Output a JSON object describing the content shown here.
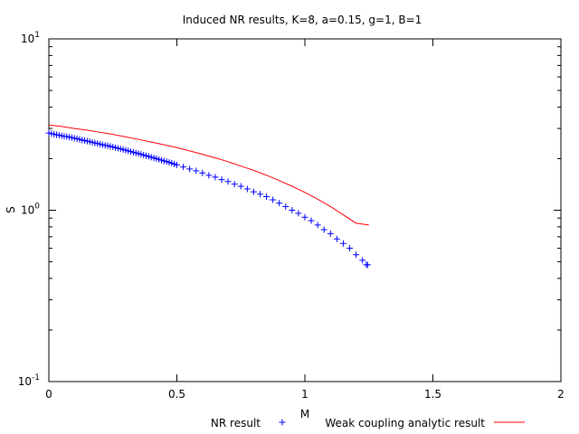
{
  "chart_data": {
    "type": "scatter",
    "title": "Induced NR results, K=8, a=0.15, g=1, B=1",
    "xlabel": "M",
    "ylabel": "S",
    "xlim": [
      0,
      2
    ],
    "ylim": [
      0.1,
      10
    ],
    "yscale": "log",
    "grid": false,
    "legend_position": "bottom",
    "x_ticks": [
      {
        "value": 0,
        "label": "0"
      },
      {
        "value": 0.5,
        "label": "0.5"
      },
      {
        "value": 1,
        "label": "1"
      },
      {
        "value": 1.5,
        "label": "1.5"
      },
      {
        "value": 2,
        "label": "2"
      }
    ],
    "y_ticks": [
      {
        "value": 0.1,
        "base": "10",
        "exp": "-1"
      },
      {
        "value": 1,
        "base": "10",
        "exp": "0"
      },
      {
        "value": 10,
        "base": "10",
        "exp": "1"
      }
    ],
    "series": [
      {
        "name": "NR result",
        "color": "#0000ff",
        "marker": "+",
        "points": [
          [
            0.0,
            2.82
          ],
          [
            0.01,
            2.8
          ],
          [
            0.02,
            2.78
          ],
          [
            0.03,
            2.76
          ],
          [
            0.04,
            2.74
          ],
          [
            0.05,
            2.72
          ],
          [
            0.06,
            2.7
          ],
          [
            0.07,
            2.69
          ],
          [
            0.08,
            2.67
          ],
          [
            0.09,
            2.65
          ],
          [
            0.1,
            2.63
          ],
          [
            0.11,
            2.61
          ],
          [
            0.12,
            2.59
          ],
          [
            0.13,
            2.57
          ],
          [
            0.14,
            2.55
          ],
          [
            0.15,
            2.53
          ],
          [
            0.16,
            2.51
          ],
          [
            0.17,
            2.49
          ],
          [
            0.18,
            2.47
          ],
          [
            0.19,
            2.45
          ],
          [
            0.2,
            2.43
          ],
          [
            0.21,
            2.41
          ],
          [
            0.22,
            2.39
          ],
          [
            0.23,
            2.38
          ],
          [
            0.24,
            2.36
          ],
          [
            0.25,
            2.34
          ],
          [
            0.26,
            2.32
          ],
          [
            0.27,
            2.3
          ],
          [
            0.28,
            2.28
          ],
          [
            0.29,
            2.26
          ],
          [
            0.3,
            2.24
          ],
          [
            0.31,
            2.22
          ],
          [
            0.32,
            2.2
          ],
          [
            0.33,
            2.18
          ],
          [
            0.34,
            2.16
          ],
          [
            0.35,
            2.14
          ],
          [
            0.36,
            2.12
          ],
          [
            0.37,
            2.1
          ],
          [
            0.38,
            2.08
          ],
          [
            0.39,
            2.06
          ],
          [
            0.4,
            2.04
          ],
          [
            0.41,
            2.02
          ],
          [
            0.42,
            2.0
          ],
          [
            0.43,
            1.98
          ],
          [
            0.44,
            1.96
          ],
          [
            0.45,
            1.94
          ],
          [
            0.46,
            1.92
          ],
          [
            0.47,
            1.9
          ],
          [
            0.48,
            1.88
          ],
          [
            0.49,
            1.86
          ],
          [
            0.5,
            1.84
          ],
          [
            0.525,
            1.79
          ],
          [
            0.55,
            1.74
          ],
          [
            0.575,
            1.7
          ],
          [
            0.6,
            1.65
          ],
          [
            0.625,
            1.6
          ],
          [
            0.65,
            1.56
          ],
          [
            0.675,
            1.51
          ],
          [
            0.7,
            1.47
          ],
          [
            0.725,
            1.42
          ],
          [
            0.75,
            1.38
          ],
          [
            0.775,
            1.33
          ],
          [
            0.8,
            1.28
          ],
          [
            0.825,
            1.24
          ],
          [
            0.85,
            1.2
          ],
          [
            0.875,
            1.15
          ],
          [
            0.9,
            1.1
          ],
          [
            0.925,
            1.05
          ],
          [
            0.95,
            1.0
          ],
          [
            0.975,
            0.96
          ],
          [
            1.0,
            0.91
          ],
          [
            1.025,
            0.87
          ],
          [
            1.05,
            0.82
          ],
          [
            1.075,
            0.77
          ],
          [
            1.1,
            0.73
          ],
          [
            1.125,
            0.68
          ],
          [
            1.15,
            0.64
          ],
          [
            1.175,
            0.6
          ],
          [
            1.2,
            0.55
          ],
          [
            1.225,
            0.51
          ],
          [
            1.24,
            0.48
          ],
          [
            1.245,
            0.48
          ]
        ]
      },
      {
        "name": "Weak coupling analytic result",
        "color": "#ff0000",
        "marker": "line",
        "points": [
          [
            0.0,
            3.15
          ],
          [
            0.05,
            3.08
          ],
          [
            0.1,
            3.0
          ],
          [
            0.15,
            2.93
          ],
          [
            0.2,
            2.85
          ],
          [
            0.25,
            2.77
          ],
          [
            0.3,
            2.68
          ],
          [
            0.35,
            2.59
          ],
          [
            0.4,
            2.5
          ],
          [
            0.45,
            2.41
          ],
          [
            0.5,
            2.32
          ],
          [
            0.55,
            2.22
          ],
          [
            0.6,
            2.12
          ],
          [
            0.65,
            2.02
          ],
          [
            0.7,
            1.92
          ],
          [
            0.75,
            1.81
          ],
          [
            0.8,
            1.71
          ],
          [
            0.85,
            1.6
          ],
          [
            0.9,
            1.49
          ],
          [
            0.95,
            1.38
          ],
          [
            1.0,
            1.27
          ],
          [
            1.05,
            1.16
          ],
          [
            1.1,
            1.05
          ],
          [
            1.15,
            0.94
          ],
          [
            1.2,
            0.84
          ],
          [
            1.25,
            0.82
          ]
        ]
      }
    ]
  }
}
